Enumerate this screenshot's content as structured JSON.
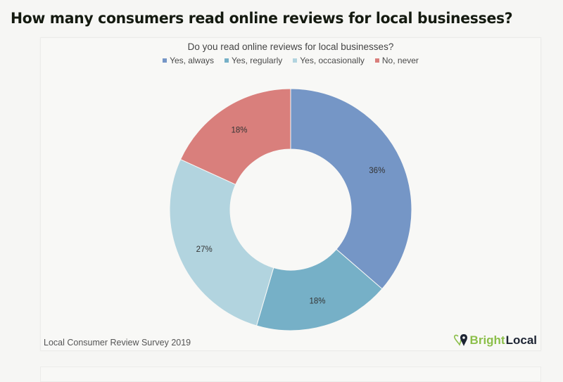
{
  "page": {
    "title": "How many consumers read online reviews for local businesses?"
  },
  "chart_data": {
    "type": "pie",
    "variant": "donut",
    "title": "Do you read online reviews for local businesses?",
    "categories": [
      "Yes, always",
      "Yes, regularly",
      "Yes, occasionally",
      "No, never"
    ],
    "values": [
      36,
      18,
      27,
      18
    ],
    "labels": [
      "36%",
      "18%",
      "27%",
      "18%"
    ],
    "colors": [
      "#7596c6",
      "#76b0c7",
      "#b2d4df",
      "#d97f7c"
    ],
    "start_angle": "top, clockwise",
    "legend_position": "top",
    "source": "Local Consumer Review Survey 2019"
  },
  "footer": {
    "source": "Local Consumer Review Survey 2019",
    "logo_part1": "Bright",
    "logo_part2": "Local"
  }
}
